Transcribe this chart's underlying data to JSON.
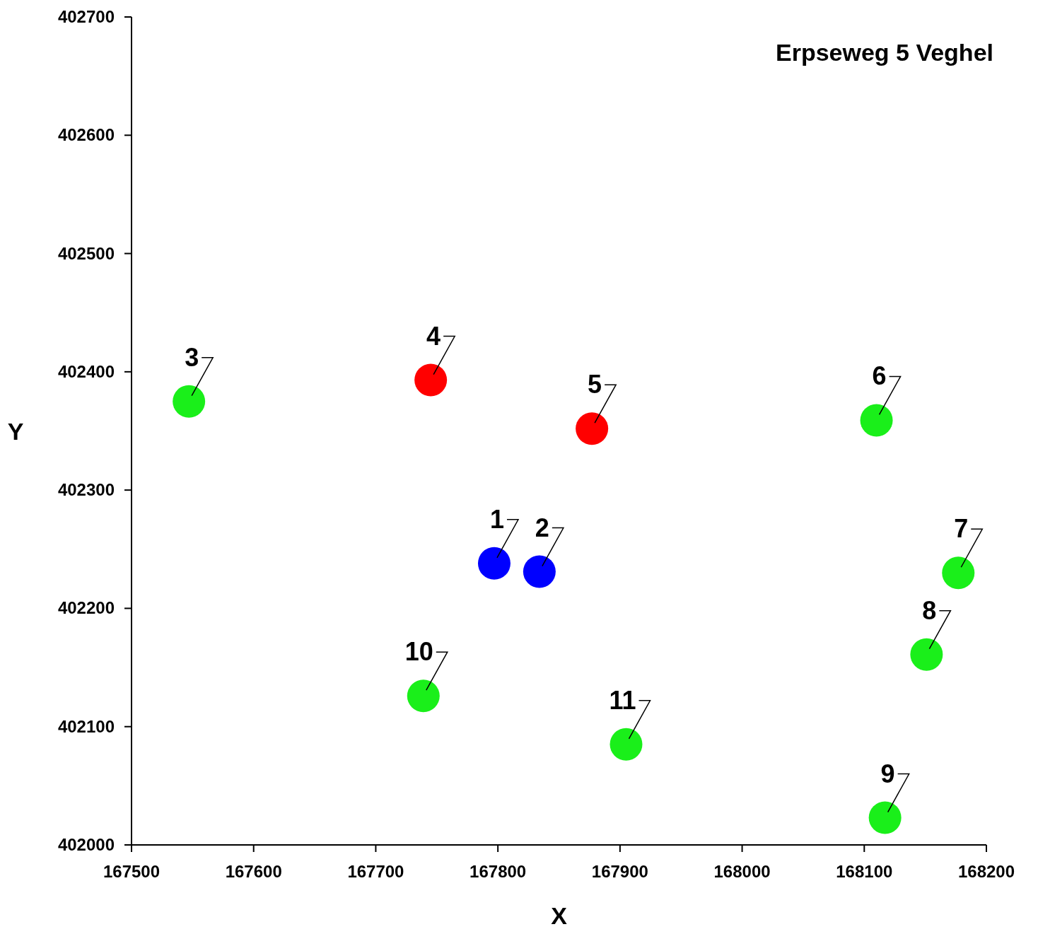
{
  "chart_data": {
    "type": "scatter",
    "title": "Erpseweg 5 Veghel",
    "xlabel": "X",
    "ylabel": "Y",
    "xlim": [
      167500,
      168200
    ],
    "xticks": [
      167500,
      167600,
      167700,
      167800,
      167900,
      168000,
      168100,
      168200
    ],
    "ylim": [
      402000,
      402700
    ],
    "yticks": [
      402000,
      402100,
      402200,
      402300,
      402400,
      402500,
      402600,
      402700
    ],
    "marker": "circle",
    "series": [
      {
        "color": "#0000ff",
        "x": [
          167797,
          167834
        ],
        "values": [
          402238,
          402231
        ]
      },
      {
        "color": "#ff0000",
        "x": [
          167745,
          167877
        ],
        "values": [
          402393,
          402352
        ]
      },
      {
        "color": "#1aef1a",
        "x": [
          167547,
          168110,
          168177,
          168151,
          168117,
          167739,
          167905
        ],
        "values": [
          402375,
          402359,
          402230,
          402161,
          402023,
          402126,
          402085
        ]
      }
    ],
    "annotations": [
      {
        "text": "1",
        "x": 167797,
        "y": 402238
      },
      {
        "text": "2",
        "x": 167834,
        "y": 402231
      },
      {
        "text": "3",
        "x": 167547,
        "y": 402375
      },
      {
        "text": "4",
        "x": 167745,
        "y": 402393
      },
      {
        "text": "5",
        "x": 167877,
        "y": 402352
      },
      {
        "text": "6",
        "x": 168110,
        "y": 402359
      },
      {
        "text": "7",
        "x": 168177,
        "y": 402230
      },
      {
        "text": "8",
        "x": 168151,
        "y": 402161
      },
      {
        "text": "9",
        "x": 168117,
        "y": 402023
      },
      {
        "text": "10",
        "x": 167739,
        "y": 402126
      },
      {
        "text": "11",
        "x": 167905,
        "y": 402085
      }
    ]
  }
}
